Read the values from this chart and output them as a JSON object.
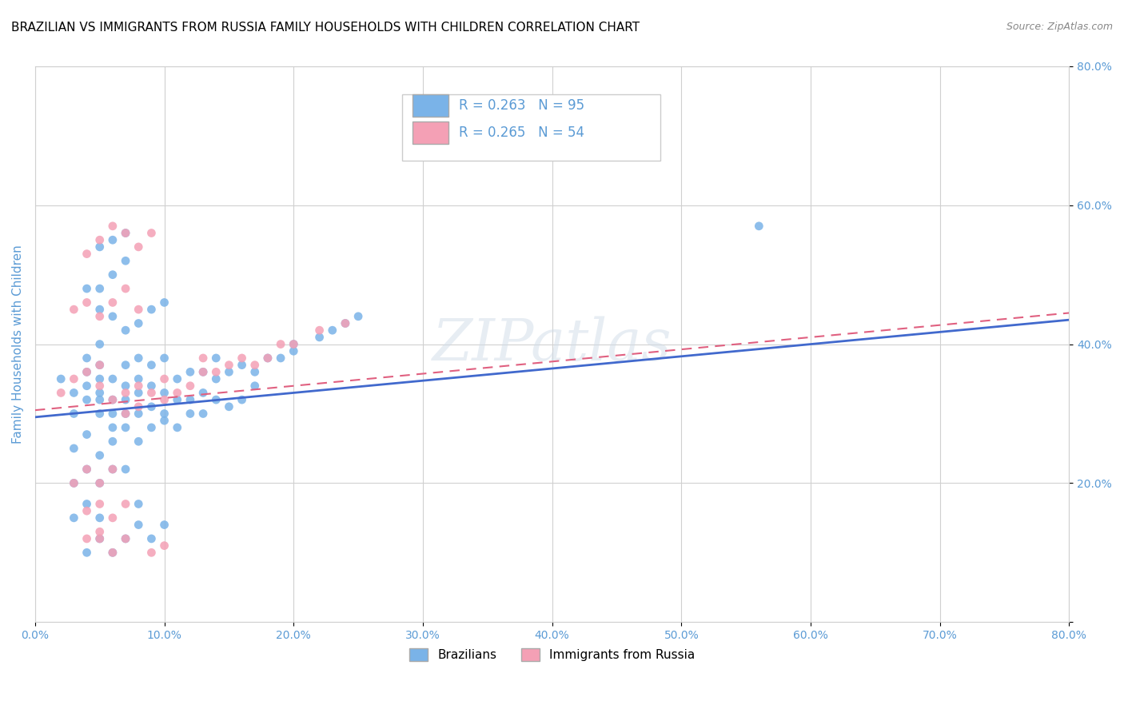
{
  "title": "BRAZILIAN VS IMMIGRANTS FROM RUSSIA FAMILY HOUSEHOLDS WITH CHILDREN CORRELATION CHART",
  "source": "Source: ZipAtlas.com",
  "ylabel": "Family Households with Children",
  "xlabel": "",
  "xlim": [
    0.0,
    0.8
  ],
  "ylim": [
    0.0,
    0.8
  ],
  "xtick_labels": [
    "0.0%",
    "10.0%",
    "20.0%",
    "30.0%",
    "40.0%",
    "50.0%",
    "60.0%",
    "70.0%",
    "80.0%"
  ],
  "ytick_labels": [
    "",
    "20.0%",
    "40.0%",
    "60.0%",
    "80.0%"
  ],
  "ytick_positions": [
    0.0,
    0.2,
    0.4,
    0.6,
    0.8
  ],
  "xtick_positions": [
    0.0,
    0.1,
    0.2,
    0.3,
    0.4,
    0.5,
    0.6,
    0.7,
    0.8
  ],
  "watermark": "ZIPatlas",
  "legend_items": [
    {
      "label": "R = 0.263   N = 95",
      "color": "#a8c8f0"
    },
    {
      "label": "R = 0.265   N = 54",
      "color": "#f8b8c8"
    }
  ],
  "bottom_legend": [
    {
      "label": "Brazilians",
      "color": "#a8c8f0"
    },
    {
      "label": "Immigrants from Russia",
      "color": "#f8b8c8"
    }
  ],
  "blue_scatter_x": [
    0.02,
    0.03,
    0.03,
    0.04,
    0.04,
    0.04,
    0.04,
    0.05,
    0.05,
    0.05,
    0.05,
    0.05,
    0.05,
    0.06,
    0.06,
    0.06,
    0.06,
    0.07,
    0.07,
    0.07,
    0.07,
    0.08,
    0.08,
    0.08,
    0.08,
    0.09,
    0.09,
    0.09,
    0.1,
    0.1,
    0.1,
    0.11,
    0.11,
    0.12,
    0.12,
    0.13,
    0.13,
    0.14,
    0.14,
    0.15,
    0.16,
    0.17,
    0.18,
    0.19,
    0.2,
    0.2,
    0.22,
    0.23,
    0.24,
    0.25,
    0.03,
    0.04,
    0.05,
    0.06,
    0.07,
    0.08,
    0.09,
    0.1,
    0.11,
    0.12,
    0.13,
    0.14,
    0.15,
    0.16,
    0.17,
    0.05,
    0.06,
    0.07,
    0.08,
    0.09,
    0.1,
    0.03,
    0.04,
    0.05,
    0.06,
    0.07,
    0.03,
    0.04,
    0.05,
    0.08,
    0.04,
    0.05,
    0.06,
    0.07,
    0.08,
    0.09,
    0.1,
    0.04,
    0.05,
    0.06,
    0.07,
    0.56,
    0.05,
    0.06,
    0.07
  ],
  "blue_scatter_y": [
    0.35,
    0.3,
    0.33,
    0.32,
    0.34,
    0.36,
    0.38,
    0.3,
    0.32,
    0.33,
    0.35,
    0.37,
    0.4,
    0.28,
    0.3,
    0.32,
    0.35,
    0.3,
    0.32,
    0.34,
    0.37,
    0.3,
    0.33,
    0.35,
    0.38,
    0.31,
    0.34,
    0.37,
    0.3,
    0.33,
    0.38,
    0.32,
    0.35,
    0.32,
    0.36,
    0.33,
    0.36,
    0.35,
    0.38,
    0.36,
    0.37,
    0.36,
    0.38,
    0.38,
    0.39,
    0.4,
    0.41,
    0.42,
    0.43,
    0.44,
    0.25,
    0.27,
    0.24,
    0.26,
    0.28,
    0.26,
    0.28,
    0.29,
    0.28,
    0.3,
    0.3,
    0.32,
    0.31,
    0.32,
    0.34,
    0.45,
    0.44,
    0.42,
    0.43,
    0.45,
    0.46,
    0.2,
    0.22,
    0.2,
    0.22,
    0.22,
    0.15,
    0.17,
    0.15,
    0.17,
    0.1,
    0.12,
    0.1,
    0.12,
    0.14,
    0.12,
    0.14,
    0.48,
    0.48,
    0.5,
    0.52,
    0.57,
    0.54,
    0.55,
    0.56
  ],
  "pink_scatter_x": [
    0.02,
    0.03,
    0.04,
    0.05,
    0.05,
    0.06,
    0.07,
    0.07,
    0.08,
    0.08,
    0.09,
    0.1,
    0.1,
    0.11,
    0.12,
    0.13,
    0.13,
    0.14,
    0.15,
    0.16,
    0.17,
    0.18,
    0.19,
    0.2,
    0.22,
    0.24,
    0.04,
    0.05,
    0.06,
    0.07,
    0.08,
    0.09,
    0.03,
    0.04,
    0.05,
    0.06,
    0.07,
    0.08,
    0.03,
    0.04,
    0.05,
    0.06,
    0.04,
    0.05,
    0.06,
    0.07,
    0.04,
    0.05,
    0.06,
    0.07,
    0.09,
    0.1,
    0.43,
    0.05
  ],
  "pink_scatter_y": [
    0.33,
    0.35,
    0.36,
    0.34,
    0.37,
    0.32,
    0.3,
    0.33,
    0.31,
    0.34,
    0.33,
    0.32,
    0.35,
    0.33,
    0.34,
    0.36,
    0.38,
    0.36,
    0.37,
    0.38,
    0.37,
    0.38,
    0.4,
    0.4,
    0.42,
    0.43,
    0.53,
    0.55,
    0.57,
    0.56,
    0.54,
    0.56,
    0.45,
    0.46,
    0.44,
    0.46,
    0.48,
    0.45,
    0.2,
    0.22,
    0.2,
    0.22,
    0.16,
    0.17,
    0.15,
    0.17,
    0.12,
    0.12,
    0.1,
    0.12,
    0.1,
    0.11,
    0.7,
    0.13
  ],
  "blue_line_x": [
    0.0,
    0.8
  ],
  "blue_line_y": [
    0.295,
    0.435
  ],
  "pink_line_x": [
    0.0,
    0.8
  ],
  "pink_line_y": [
    0.305,
    0.445
  ],
  "blue_color": "#7ab3e8",
  "pink_color": "#f4a0b5",
  "blue_line_color": "#4169cd",
  "pink_line_color": "#e06080",
  "grid_color": "#d0d0d0",
  "bg_color": "#ffffff",
  "title_color": "#000000",
  "title_fontsize": 11,
  "axis_label_color": "#5b9bd5",
  "tick_color": "#5b9bd5"
}
